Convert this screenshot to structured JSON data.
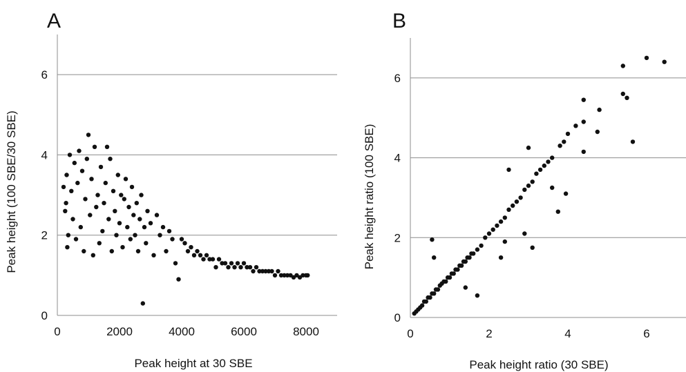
{
  "chart_data": [
    {
      "type": "scatter",
      "panel_label": "A",
      "title": "",
      "xlabel": "Peak height at 30 SBE",
      "ylabel": "Peak height (100 SBE/30 SBE)",
      "xlim": [
        0,
        9000
      ],
      "ylim": [
        0,
        7
      ],
      "xticks": [
        0,
        2000,
        4000,
        6000,
        8000
      ],
      "yticks": [
        0,
        2,
        4,
        6
      ],
      "grid": "horizontal",
      "legend": "none",
      "series": [
        {
          "points": [
            [
              200,
              3.2
            ],
            [
              250,
              2.6
            ],
            [
              300,
              3.5
            ],
            [
              350,
              2.0
            ],
            [
              320,
              1.7
            ],
            [
              280,
              2.8
            ],
            [
              400,
              4.0
            ],
            [
              450,
              3.1
            ],
            [
              500,
              2.4
            ],
            [
              550,
              3.8
            ],
            [
              600,
              1.9
            ],
            [
              650,
              3.3
            ],
            [
              700,
              4.1
            ],
            [
              750,
              2.2
            ],
            [
              800,
              3.6
            ],
            [
              850,
              1.6
            ],
            [
              900,
              2.9
            ],
            [
              950,
              3.9
            ],
            [
              1000,
              4.5
            ],
            [
              1050,
              2.5
            ],
            [
              1100,
              3.4
            ],
            [
              1150,
              1.5
            ],
            [
              1200,
              4.2
            ],
            [
              1250,
              2.7
            ],
            [
              1300,
              3.0
            ],
            [
              1350,
              1.8
            ],
            [
              1400,
              3.7
            ],
            [
              1450,
              2.1
            ],
            [
              1500,
              2.8
            ],
            [
              1550,
              3.3
            ],
            [
              1600,
              4.2
            ],
            [
              1650,
              2.4
            ],
            [
              1700,
              3.9
            ],
            [
              1750,
              1.6
            ],
            [
              1800,
              3.1
            ],
            [
              1850,
              2.6
            ],
            [
              1900,
              2.0
            ],
            [
              1950,
              3.5
            ],
            [
              2000,
              2.3
            ],
            [
              2050,
              3.0
            ],
            [
              2100,
              1.7
            ],
            [
              2150,
              2.9
            ],
            [
              2200,
              3.4
            ],
            [
              2250,
              2.2
            ],
            [
              2300,
              2.7
            ],
            [
              2350,
              1.9
            ],
            [
              2400,
              3.2
            ],
            [
              2450,
              2.5
            ],
            [
              2500,
              2.0
            ],
            [
              2550,
              2.8
            ],
            [
              2600,
              1.6
            ],
            [
              2650,
              2.4
            ],
            [
              2700,
              3.0
            ],
            [
              2750,
              0.3
            ],
            [
              2800,
              2.2
            ],
            [
              2850,
              1.8
            ],
            [
              2900,
              2.6
            ],
            [
              3000,
              2.3
            ],
            [
              3100,
              1.5
            ],
            [
              3200,
              2.5
            ],
            [
              3300,
              2.0
            ],
            [
              3400,
              2.2
            ],
            [
              3500,
              1.6
            ],
            [
              3600,
              2.1
            ],
            [
              3700,
              1.9
            ],
            [
              3800,
              1.3
            ],
            [
              3900,
              0.9
            ],
            [
              4000,
              1.9
            ],
            [
              4100,
              1.8
            ],
            [
              4200,
              1.6
            ],
            [
              4300,
              1.7
            ],
            [
              4400,
              1.5
            ],
            [
              4500,
              1.6
            ],
            [
              4600,
              1.5
            ],
            [
              4700,
              1.4
            ],
            [
              4800,
              1.5
            ],
            [
              4900,
              1.4
            ],
            [
              5000,
              1.4
            ],
            [
              5100,
              1.2
            ],
            [
              5200,
              1.4
            ],
            [
              5300,
              1.3
            ],
            [
              5400,
              1.3
            ],
            [
              5500,
              1.2
            ],
            [
              5600,
              1.3
            ],
            [
              5700,
              1.2
            ],
            [
              5800,
              1.3
            ],
            [
              5900,
              1.2
            ],
            [
              6000,
              1.3
            ],
            [
              6100,
              1.2
            ],
            [
              6200,
              1.2
            ],
            [
              6300,
              1.1
            ],
            [
              6400,
              1.2
            ],
            [
              6500,
              1.1
            ],
            [
              6600,
              1.1
            ],
            [
              6700,
              1.1
            ],
            [
              6800,
              1.1
            ],
            [
              6900,
              1.1
            ],
            [
              7000,
              1.0
            ],
            [
              7100,
              1.1
            ],
            [
              7200,
              1.0
            ],
            [
              7300,
              1.0
            ],
            [
              7400,
              1.0
            ],
            [
              7500,
              1.0
            ],
            [
              7600,
              0.95
            ],
            [
              7700,
              1.0
            ],
            [
              7800,
              0.95
            ],
            [
              7900,
              1.0
            ],
            [
              8000,
              1.0
            ],
            [
              8050,
              1.0
            ]
          ]
        }
      ]
    },
    {
      "type": "scatter",
      "panel_label": "B",
      "title": "",
      "xlabel": "Peak height ratio (30 SBE)",
      "ylabel": "Peak height ratio (100 SBE)",
      "xlim": [
        0,
        7
      ],
      "ylim": [
        0,
        7
      ],
      "xticks": [
        0,
        2,
        4,
        6
      ],
      "yticks": [
        0,
        2,
        4,
        6
      ],
      "grid": "horizontal",
      "legend": "none",
      "series": [
        {
          "points": [
            [
              0.1,
              0.1
            ],
            [
              0.15,
              0.15
            ],
            [
              0.2,
              0.2
            ],
            [
              0.25,
              0.25
            ],
            [
              0.3,
              0.3
            ],
            [
              0.35,
              0.4
            ],
            [
              0.4,
              0.4
            ],
            [
              0.45,
              0.5
            ],
            [
              0.5,
              0.5
            ],
            [
              0.55,
              0.6
            ],
            [
              0.6,
              0.6
            ],
            [
              0.65,
              0.7
            ],
            [
              0.7,
              0.7
            ],
            [
              0.75,
              0.8
            ],
            [
              0.8,
              0.85
            ],
            [
              0.85,
              0.9
            ],
            [
              0.9,
              0.9
            ],
            [
              0.95,
              1.0
            ],
            [
              1.0,
              1.0
            ],
            [
              1.05,
              1.1
            ],
            [
              1.1,
              1.1
            ],
            [
              1.15,
              1.2
            ],
            [
              1.2,
              1.2
            ],
            [
              1.25,
              1.3
            ],
            [
              1.3,
              1.3
            ],
            [
              1.35,
              1.4
            ],
            [
              1.4,
              1.4
            ],
            [
              1.45,
              1.5
            ],
            [
              1.5,
              1.5
            ],
            [
              1.55,
              1.6
            ],
            [
              1.6,
              1.6
            ],
            [
              1.7,
              1.7
            ],
            [
              1.8,
              1.8
            ],
            [
              1.9,
              2.0
            ],
            [
              2.0,
              2.1
            ],
            [
              2.1,
              2.2
            ],
            [
              2.2,
              2.3
            ],
            [
              2.3,
              2.4
            ],
            [
              2.4,
              2.5
            ],
            [
              2.5,
              2.7
            ],
            [
              2.6,
              2.8
            ],
            [
              2.7,
              2.9
            ],
            [
              2.8,
              3.0
            ],
            [
              2.9,
              3.2
            ],
            [
              3.0,
              3.3
            ],
            [
              3.1,
              3.4
            ],
            [
              3.2,
              3.6
            ],
            [
              3.3,
              3.7
            ],
            [
              3.4,
              3.8
            ],
            [
              3.5,
              3.9
            ],
            [
              3.6,
              4.0
            ],
            [
              3.8,
              4.3
            ],
            [
              3.9,
              4.4
            ],
            [
              4.0,
              4.6
            ],
            [
              4.2,
              4.8
            ],
            [
              4.4,
              4.9
            ],
            [
              4.8,
              5.2
            ],
            [
              5.4,
              5.6
            ],
            [
              5.5,
              5.5
            ],
            [
              5.4,
              6.3
            ],
            [
              6.0,
              6.5
            ],
            [
              6.45,
              6.4
            ],
            [
              5.65,
              4.4
            ],
            [
              4.75,
              4.65
            ],
            [
              4.4,
              5.45
            ],
            [
              0.55,
              1.95
            ],
            [
              1.7,
              0.55
            ],
            [
              3.1,
              1.75
            ],
            [
              2.9,
              2.1
            ],
            [
              2.3,
              1.5
            ],
            [
              3.95,
              3.1
            ],
            [
              3.75,
              2.65
            ],
            [
              2.5,
              3.7
            ],
            [
              3.0,
              4.25
            ],
            [
              1.4,
              0.75
            ],
            [
              0.6,
              1.5
            ],
            [
              2.4,
              1.9
            ],
            [
              3.6,
              3.25
            ],
            [
              4.4,
              4.15
            ]
          ]
        }
      ]
    }
  ]
}
